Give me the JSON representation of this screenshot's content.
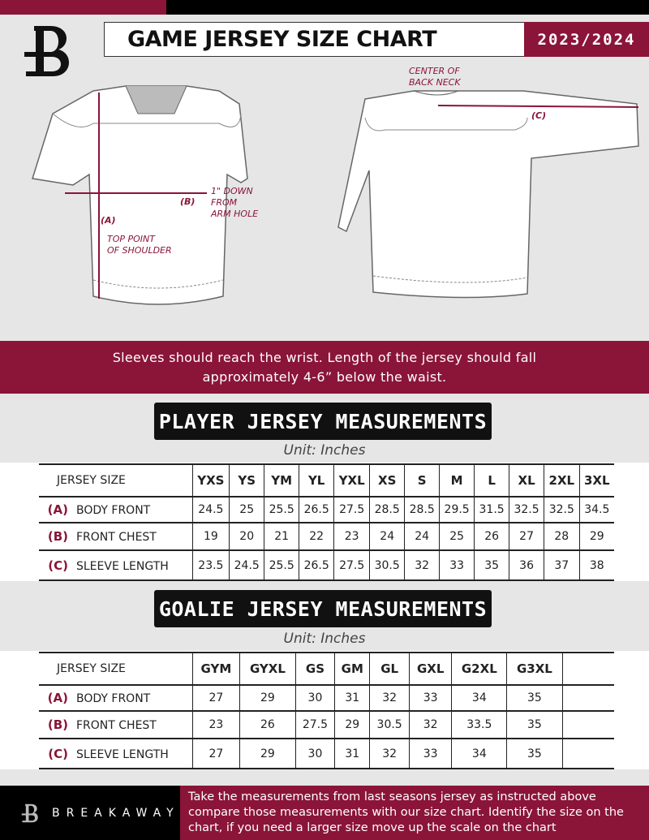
{
  "header": {
    "title": "GAME JERSEY SIZE CHART",
    "season": "2023/2024",
    "logo_letter": "B"
  },
  "diagram": {
    "front_notes": {
      "a_label": "(A)",
      "a_text": "TOP POINT\nOF SHOULDER",
      "b_label": "(B)",
      "b_text": "1\" DOWN\nFROM\nARM HOLE"
    },
    "back_notes": {
      "c_label": "(C)",
      "c_text": "CENTER OF\nBACK NECK"
    }
  },
  "instructions": "Sleeves should reach the wrist. Length of the jersey should fall approximately 4-6” below the waist.",
  "player": {
    "heading": "PLAYER JERSEY MEASUREMENTS",
    "unit": "Unit: Inches",
    "size_header": "JERSEY SIZE",
    "sizes": [
      "YXS",
      "YS",
      "YM",
      "YL",
      "YXL",
      "XS",
      "S",
      "M",
      "L",
      "XL",
      "2XL",
      "3XL"
    ],
    "rows": [
      {
        "letter": "(A)",
        "label": "BODY FRONT",
        "values": [
          "24.5",
          "25",
          "25.5",
          "26.5",
          "27.5",
          "28.5",
          "28.5",
          "29.5",
          "31.5",
          "32.5",
          "32.5",
          "34.5"
        ]
      },
      {
        "letter": "(B)",
        "label": "FRONT CHEST",
        "values": [
          "19",
          "20",
          "21",
          "22",
          "23",
          "24",
          "24",
          "25",
          "26",
          "27",
          "28",
          "29"
        ]
      },
      {
        "letter": "(C)",
        "label": "SLEEVE LENGTH",
        "values": [
          "23.5",
          "24.5",
          "25.5",
          "26.5",
          "27.5",
          "30.5",
          "32",
          "33",
          "35",
          "36",
          "37",
          "38"
        ]
      }
    ]
  },
  "goalie": {
    "heading": "GOALIE JERSEY MEASUREMENTS",
    "unit": "Unit: Inches",
    "size_header": "JERSEY SIZE",
    "sizes": [
      "GYM",
      "GYXL",
      "GS",
      "GM",
      "GL",
      "GXL",
      "G2XL",
      "G3XL"
    ],
    "rows": [
      {
        "letter": "(A)",
        "label": "BODY FRONT",
        "values": [
          "27",
          "29",
          "30",
          "31",
          "32",
          "33",
          "34",
          "35"
        ]
      },
      {
        "letter": "(B)",
        "label": "FRONT CHEST",
        "values": [
          "23",
          "26",
          "27.5",
          "29",
          "30.5",
          "32",
          "33.5",
          "35"
        ]
      },
      {
        "letter": "(C)",
        "label": "SLEEVE LENGTH",
        "values": [
          "27",
          "29",
          "30",
          "31",
          "32",
          "33",
          "34",
          "35"
        ]
      }
    ]
  },
  "footer": {
    "brand": "BREAKAWAY",
    "text": "Take the measurements from last seasons jersey as instructed above compare those measurements  with our size chart. Identify the size on the chart, if you need a larger size move up the scale on the chart"
  },
  "colors": {
    "accent": "#8a1538",
    "dark": "#111111",
    "background": "#e6e6e7"
  }
}
